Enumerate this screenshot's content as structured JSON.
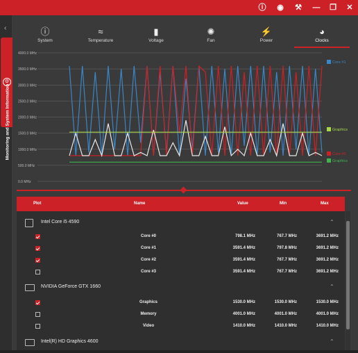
{
  "window": {
    "controls": [
      "info-icon",
      "camera-icon",
      "wrench-icon",
      "minimize-icon",
      "restore-icon",
      "close-icon"
    ]
  },
  "sidebar": {
    "tab_label": "Monitoring and System Information"
  },
  "tabs": [
    {
      "label": "System",
      "icon": "info-icon"
    },
    {
      "label": "Temperature",
      "icon": "thermometer-icon"
    },
    {
      "label": "Voltage",
      "icon": "battery-icon"
    },
    {
      "label": "Fan",
      "icon": "fan-icon"
    },
    {
      "label": "Power",
      "icon": "plug-icon"
    },
    {
      "label": "Clocks",
      "icon": "gauge-icon",
      "active": true
    }
  ],
  "chart_data": {
    "type": "line",
    "y_ticks": [
      "4000.0 MHz",
      "3500.0 MHz",
      "3000.0 MHz",
      "2500.0 MHz",
      "2000.0 MHz",
      "1500.0 MHz",
      "1000.0 MHz",
      "500.0 MHz",
      "0.0 MHz"
    ],
    "ylim": [
      0,
      4000
    ],
    "legend": [
      "Core #1",
      "Graphics",
      "Core #0",
      "Graphics"
    ],
    "series": [
      {
        "name": "Core #1",
        "color": "#3a86c8",
        "values": [
          3591,
          800,
          3591,
          900,
          3400,
          800,
          3591,
          1000,
          3500,
          800,
          3591,
          1200,
          3591,
          800,
          3400,
          900,
          3591,
          800,
          3200,
          1000,
          3591,
          800,
          3591,
          900,
          3500,
          800,
          3591,
          1100,
          3591,
          800,
          3591,
          900,
          3400,
          800,
          3591,
          1000,
          3591,
          800,
          3500,
          900
        ]
      },
      {
        "name": "Core #0",
        "color": "#cc2127",
        "values": [
          800,
          800,
          800,
          800,
          800,
          800,
          800,
          800,
          800,
          800,
          800,
          800,
          3591,
          800,
          3591,
          800,
          3591,
          1500,
          3591,
          800,
          3591,
          3400,
          800,
          3591,
          800,
          3591,
          800,
          3400,
          800,
          3591,
          800,
          3591,
          800,
          3591,
          800,
          3400,
          800,
          3591,
          800,
          3591
        ]
      },
      {
        "name": "Core #3",
        "color": "#e8e8e8",
        "values": [
          800,
          1500,
          800,
          800,
          1300,
          800,
          1800,
          800,
          800,
          1500,
          800,
          900,
          800,
          1600,
          800,
          800,
          1200,
          800,
          1900,
          800,
          800,
          1400,
          800,
          800,
          1700,
          800,
          1000,
          800,
          1500,
          800,
          800,
          1300,
          800,
          1800,
          800,
          800,
          1500,
          800,
          900,
          800
        ]
      },
      {
        "name": "Graphics",
        "color": "#a8d84a",
        "values": [
          1530,
          1530
        ]
      },
      {
        "name": "Graphics",
        "color": "#3fb34f",
        "values": [
          600,
          600
        ]
      }
    ]
  },
  "table": {
    "headers": {
      "plot": "Plot",
      "name": "Name",
      "value": "Value",
      "min": "Min",
      "max": "Max"
    },
    "groups": [
      {
        "name": "Intel Core i5 4590",
        "rows": [
          {
            "checked": true,
            "name": "Core #0",
            "value": "798.1 MHz",
            "min": "767.7 MHz",
            "max": "3691.2 MHz"
          },
          {
            "checked": true,
            "name": "Core #1",
            "value": "3591.4 MHz",
            "min": "797.8 MHz",
            "max": "3691.2 MHz"
          },
          {
            "checked": true,
            "name": "Core #2",
            "value": "3591.4 MHz",
            "min": "767.7 MHz",
            "max": "3691.2 MHz"
          },
          {
            "checked": false,
            "name": "Core #3",
            "value": "3591.4 MHz",
            "min": "767.7 MHz",
            "max": "3691.2 MHz"
          }
        ]
      },
      {
        "name": "NVIDIA GeForce GTX 1660",
        "rows": [
          {
            "checked": true,
            "name": "Graphics",
            "value": "1530.0 MHz",
            "min": "1530.0 MHz",
            "max": "1530.0 MHz"
          },
          {
            "checked": false,
            "name": "Memory",
            "value": "4001.0 MHz",
            "min": "4001.0 MHz",
            "max": "4001.0 MHz"
          },
          {
            "checked": false,
            "name": "Video",
            "value": "1410.0 MHz",
            "min": "1410.0 MHz",
            "max": "1410.0 MHz"
          }
        ]
      },
      {
        "name": "Intel(R) HD Graphics 4600",
        "rows": []
      }
    ]
  },
  "colors": {
    "accent": "#cc2127",
    "background": "#3a3a3a"
  }
}
